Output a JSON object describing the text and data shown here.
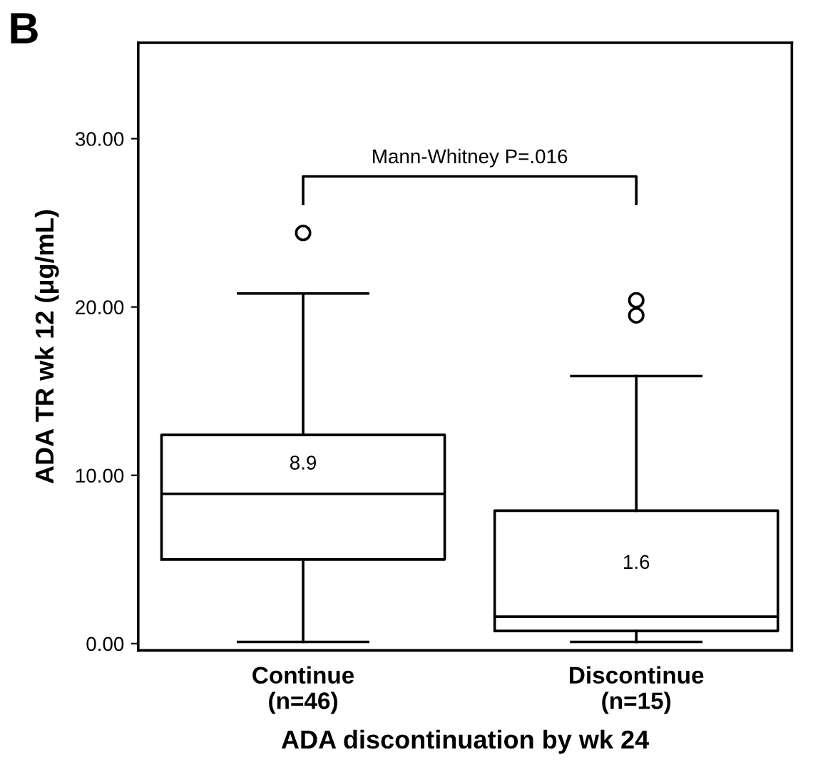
{
  "chart_data": {
    "type": "box",
    "title": "B",
    "ylabel": "ADA TR wk 12 (μg/mL)",
    "xlabel": "ADA discontinuation by wk 24",
    "categories": [
      "Continue\n(n=46)",
      "Discontinue\n(n=15)"
    ],
    "boxes": [
      {
        "low": 0.1,
        "q1": 5.0,
        "median": 8.9,
        "q3": 12.4,
        "high": 20.8,
        "outliers": [
          24.4
        ]
      },
      {
        "low": 0.1,
        "q1": 0.75,
        "median": 1.6,
        "q3": 7.9,
        "high": 15.9,
        "outliers": [
          19.5,
          20.4
        ]
      }
    ],
    "value_labels": [
      "8.9",
      "1.6"
    ],
    "annotations": [
      "Mann-Whitney P=.016"
    ],
    "ylim": [
      -0.4,
      35.7
    ],
    "yticks": [
      {
        "value": 0,
        "label": "0.00"
      },
      {
        "value": 10,
        "label": "10.00"
      },
      {
        "value": 20,
        "label": "20.00"
      },
      {
        "value": 30,
        "label": "30.00"
      }
    ],
    "grid": false
  }
}
